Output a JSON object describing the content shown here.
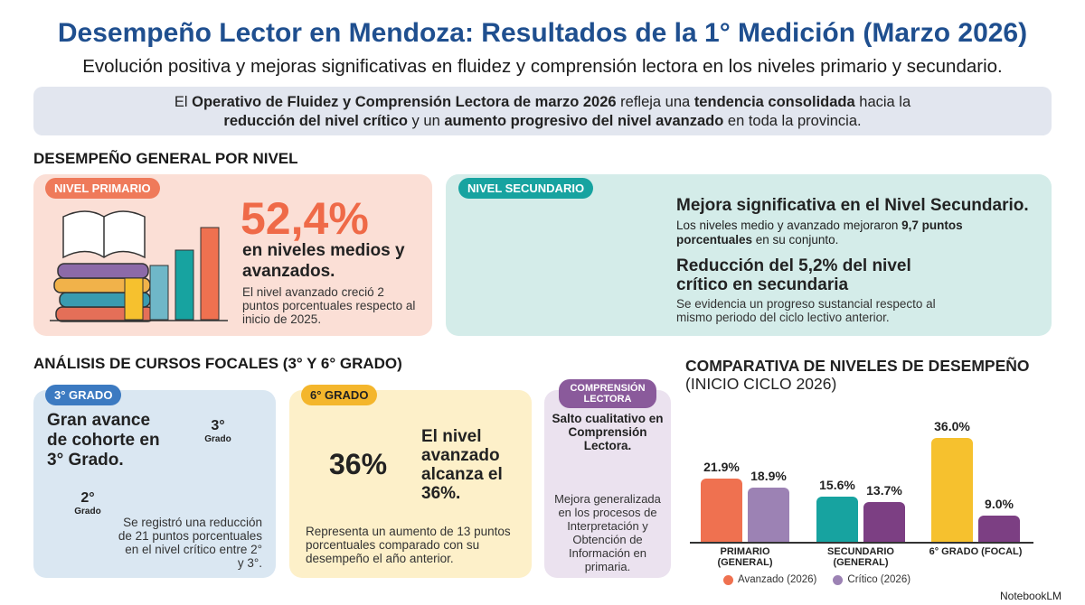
{
  "header": {
    "title": "Desempeño Lector en Mendoza: Resultados de la 1° Medición (Marzo 2026)",
    "subtitle": "Evolución positiva y mejoras significativas en fluidez y comprensión lectora en los niveles primario y secundario."
  },
  "intro": {
    "parts": [
      {
        "text": "El ",
        "bold": false
      },
      {
        "text": "Operativo de Fluidez y Comprensión Lectora de marzo 2026",
        "bold": true
      },
      {
        "text": " refleja una ",
        "bold": false
      },
      {
        "text": "tendencia consolidada",
        "bold": true
      },
      {
        "text": " hacia la ",
        "bold": false
      },
      {
        "text": "reducción del nivel crítico",
        "bold": true
      },
      {
        "text": " y un ",
        "bold": false
      },
      {
        "text": "aumento progresivo del nivel avanzado",
        "bold": true
      },
      {
        "text": " en toda la provincia.",
        "bold": false
      }
    ]
  },
  "general": {
    "title": "DESEMPEÑO GENERAL POR NIVEL",
    "primario": {
      "badge": "NIVEL PRIMARIO",
      "stat": "52,4%",
      "headline": "en niveles medios y avanzados.",
      "text": "El nivel avanzado creció 2 puntos porcentuales respecto al inicio de 2025."
    },
    "secundario": {
      "badge": "NIVEL SECUNDARIO",
      "heading1": "Mejora significativa en el Nivel Secundario.",
      "text1": {
        "parts": [
          {
            "text": "Los niveles medio y avanzado mejoraron ",
            "bold": false
          },
          {
            "text": "9,7 puntos porcentuales",
            "bold": true
          },
          {
            "text": " en su conjunto.",
            "bold": false
          }
        ]
      },
      "heading2": "Reducción del 5,2% del nivel crítico en secundaria",
      "text2": "Se evidencia un progreso sustancial respecto al mismo periodo del ciclo lectivo anterior."
    }
  },
  "focal": {
    "title": "ANÁLISIS DE CURSOS FOCALES (3° Y 6° GRADO)",
    "grado3": {
      "badge": "3° GRADO",
      "heading": "Gran avance de cohorte en 3° Grado.",
      "pin_top": {
        "number": "3°",
        "label": "Grado"
      },
      "pin_bottom": {
        "number": "2°",
        "label": "Grado"
      },
      "text": "Se registró una reducción de 21 puntos porcentuales en el nivel crítico entre 2° y 3°."
    },
    "grado6": {
      "badge": "6° GRADO",
      "donut": "36%",
      "heading": "El nivel avanzado alcanza el 36%.",
      "text": "Representa un aumento de 13 puntos porcentuales comparado con su desempeño el año anterior."
    },
    "comprension": {
      "badge": "COMPRENSIÓN LECTORA",
      "heading": "Salto cualitativo en Comprensión Lectora.",
      "text": "Mejora generalizada en los procesos de Interpretación y Obtención de Información en primaria."
    }
  },
  "chart_data": {
    "type": "bar",
    "title": "COMPARATIVA DE NIVELES DE DESEMPEÑO",
    "subtitle": "(INICIO CICLO 2026)",
    "categories": [
      "PRIMARIO (GENERAL)",
      "SECUNDARIO (GENERAL)",
      "6° GRADO (FOCAL)"
    ],
    "series": [
      {
        "name": "Avanzado (2026)",
        "color": "#ef7150",
        "colors": [
          "#ef7150",
          "#17a3a0",
          "#f6c12e"
        ],
        "values": [
          21.9,
          15.6,
          36.0
        ],
        "value_labels": [
          "21.9%",
          "15.6%",
          "36.0%"
        ]
      },
      {
        "name": "Crítico (2026)",
        "color": "#9c82b4",
        "colors": [
          "#9c82b4",
          "#7c3f83",
          "#7c3f83"
        ],
        "values": [
          18.9,
          13.7,
          9.0
        ],
        "value_labels": [
          "18.9%",
          "13.7%",
          "9.0%"
        ]
      }
    ],
    "legend": "bottom"
  },
  "footer": {
    "brand": "NotebookLM"
  }
}
